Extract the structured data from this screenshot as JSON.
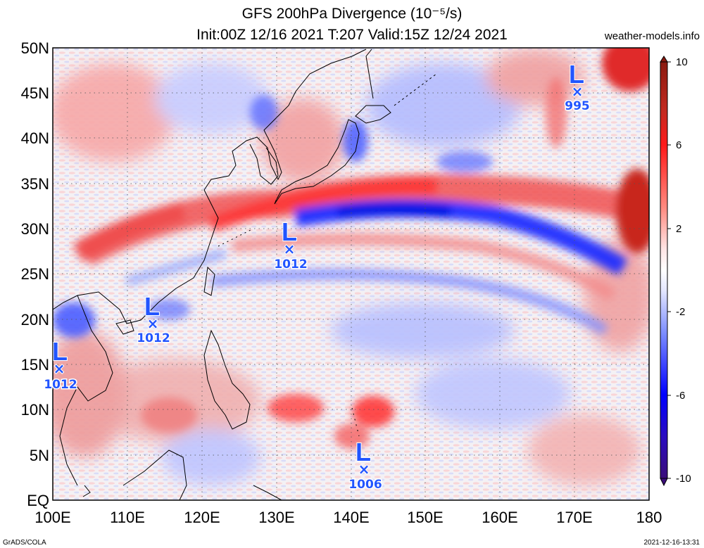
{
  "header": {
    "title_line1": "GFS 200hPa Divergence (10⁻⁵/s)",
    "title_line2": "Init:00Z 12/16 2021 T:207 Valid:15Z 12/24 2021",
    "site": "weather-models.info"
  },
  "footer": {
    "left": "GrADS/COLA",
    "right": "2021-12-16-13:31"
  },
  "axes": {
    "lat_labels": [
      "50N",
      "45N",
      "40N",
      "35N",
      "30N",
      "25N",
      "20N",
      "15N",
      "10N",
      "5N",
      "EQ"
    ],
    "lon_labels": [
      "100E",
      "110E",
      "120E",
      "130E",
      "140E",
      "150E",
      "160E",
      "170E",
      "180"
    ]
  },
  "colorbar": {
    "labels": [
      "10",
      "6",
      "2",
      "-2",
      "-6",
      "-10"
    ],
    "colors": [
      "#3b0d7a",
      "#0000ff",
      "#6a8cff",
      "#ffffff",
      "#ff8a80",
      "#ff0000",
      "#8a1a10"
    ]
  },
  "lows": [
    {
      "id": "sea",
      "symbol": "L",
      "marker": "×",
      "pressure": "1012"
    },
    {
      "id": "scs",
      "symbol": "L",
      "marker": "×",
      "pressure": "1012"
    },
    {
      "id": "ryukyu",
      "symbol": "L",
      "marker": "×",
      "pressure": "1012"
    },
    {
      "id": "micro",
      "symbol": "L",
      "marker": "×",
      "pressure": "1006"
    },
    {
      "id": "north",
      "symbol": "L",
      "marker": "×",
      "pressure": "995"
    }
  ]
}
